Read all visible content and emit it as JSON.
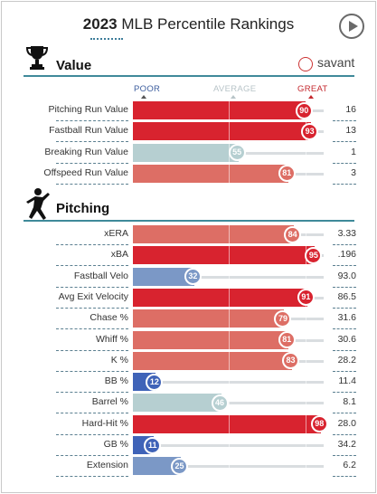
{
  "header": {
    "title_year": "2023",
    "title_rest": " MLB Percentile Rankings",
    "play_icon": "play-circle-icon"
  },
  "brand": {
    "name": "savant",
    "icon": "savant-logo-icon"
  },
  "scale": {
    "poor": "POOR",
    "average": "AVERAGE",
    "great": "GREAT"
  },
  "colors": {
    "great": "#d8232f",
    "good": "#dd6e65",
    "neutral": "#b6cfd1",
    "poor_mid": "#7b98c6",
    "poor": "#3f63b8",
    "rule": "#3f8a9a"
  },
  "chart_data": {
    "type": "bar",
    "orientation": "horizontal",
    "xlim": [
      0,
      100
    ],
    "sections": [
      {
        "name": "Value",
        "icon": "trophy-icon",
        "rows": [
          {
            "metric": "Pitching Run Value",
            "percentile": 90,
            "value": "16"
          },
          {
            "metric": "Fastball Run Value",
            "percentile": 93,
            "value": "13"
          },
          {
            "metric": "Breaking Run Value",
            "percentile": 55,
            "value": "1"
          },
          {
            "metric": "Offspeed Run Value",
            "percentile": 81,
            "value": "3"
          }
        ]
      },
      {
        "name": "Pitching",
        "icon": "pitcher-icon",
        "rows": [
          {
            "metric": "xERA",
            "percentile": 84,
            "value": "3.33"
          },
          {
            "metric": "xBA",
            "percentile": 95,
            "value": ".196"
          },
          {
            "metric": "Fastball Velo",
            "percentile": 32,
            "value": "93.0"
          },
          {
            "metric": "Avg Exit Velocity",
            "percentile": 91,
            "value": "86.5"
          },
          {
            "metric": "Chase %",
            "percentile": 79,
            "value": "31.6"
          },
          {
            "metric": "Whiff %",
            "percentile": 81,
            "value": "30.6"
          },
          {
            "metric": "K %",
            "percentile": 83,
            "value": "28.2"
          },
          {
            "metric": "BB %",
            "percentile": 12,
            "value": "11.4"
          },
          {
            "metric": "Barrel %",
            "percentile": 46,
            "value": "8.1"
          },
          {
            "metric": "Hard-Hit %",
            "percentile": 98,
            "value": "28.0"
          },
          {
            "metric": "GB %",
            "percentile": 11,
            "value": "34.2"
          },
          {
            "metric": "Extension",
            "percentile": 25,
            "value": "6.2"
          }
        ]
      }
    ]
  }
}
